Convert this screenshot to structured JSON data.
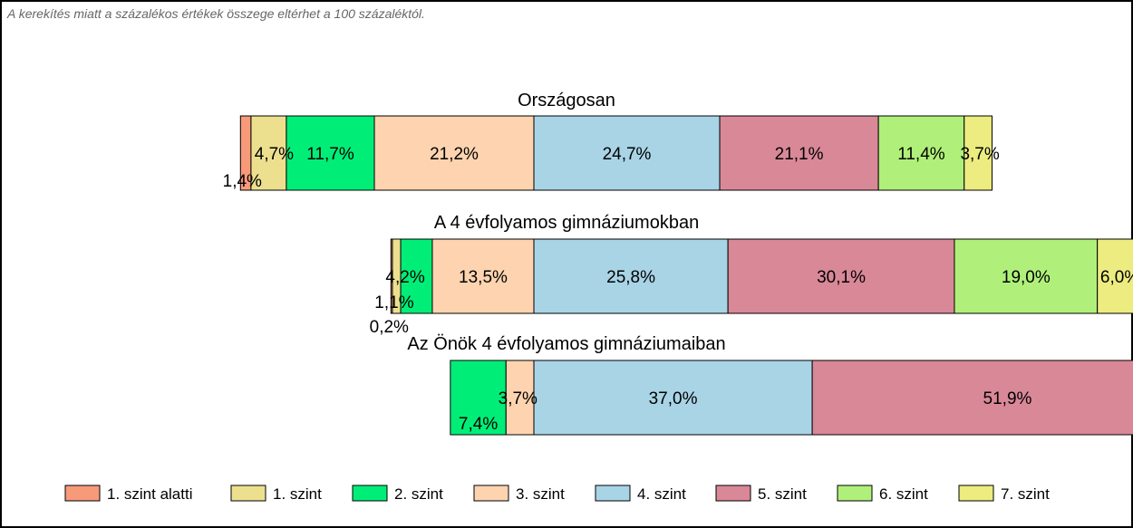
{
  "note": "A kerekítés miatt a  százalékos értékek összege eltérhet a 100 százaléktól.",
  "chart_data": {
    "type": "bar",
    "orientation": "horizontal-stacked-100",
    "categories": [
      "1. szint alatti",
      "1. szint",
      "2. szint",
      "3. szint",
      "4. szint",
      "5. szint",
      "6. szint",
      "7. szint"
    ],
    "colors": [
      "#f79a7a",
      "#ece08f",
      "#00ee77",
      "#fdd4af",
      "#a8d4e6",
      "#d98898",
      "#b0f07a",
      "#ecec80"
    ],
    "series": [
      {
        "name": "Országosan",
        "values": [
          1.4,
          4.7,
          11.7,
          21.2,
          24.7,
          21.1,
          11.4,
          3.7
        ],
        "labels": [
          "1,4%",
          "4,7%",
          "11,7%",
          "21,2%",
          "24,7%",
          "21,1%",
          "11,4%",
          "3,7%"
        ]
      },
      {
        "name": "A 4 évfolyamos gimnáziumokban",
        "values": [
          0.2,
          1.1,
          4.2,
          13.5,
          25.8,
          30.1,
          19.0,
          6.0
        ],
        "labels": [
          "0,2%",
          "1,1%",
          "4,2%",
          "13,5%",
          "25,8%",
          "30,1%",
          "19,0%",
          "6,0%"
        ]
      },
      {
        "name": "Az Önök 4 évfolyamos gimnáziumaiban",
        "values": [
          0,
          0,
          7.4,
          3.7,
          37.0,
          51.9,
          0,
          0
        ],
        "labels": [
          "",
          "",
          "7,4%",
          "3,7%",
          "37,0%",
          "51,9%",
          "",
          ""
        ]
      }
    ],
    "legend_position": "bottom",
    "legend": [
      "1. szint alatti",
      "1. szint",
      "2. szint",
      "3. szint",
      "4. szint",
      "5. szint",
      "6. szint",
      "7. szint"
    ]
  }
}
